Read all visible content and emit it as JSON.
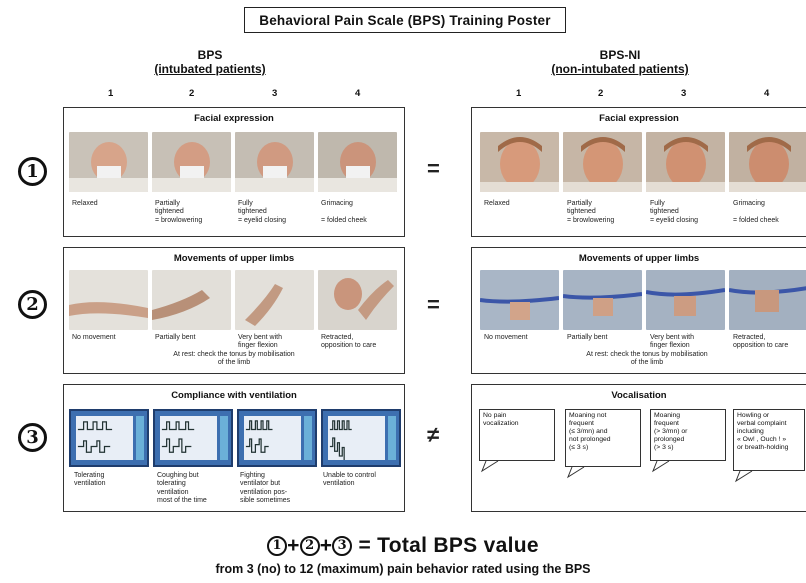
{
  "title": "Behavioral Pain Scale (BPS) Training Poster",
  "left_column": {
    "heading": "BPS",
    "subheading": "(intubated patients)"
  },
  "right_column": {
    "heading": "BPS-NI",
    "subheading": "(non-intubated patients)"
  },
  "score_labels": [
    "1",
    "2",
    "3",
    "4"
  ],
  "item_numbers": [
    "1",
    "2",
    "3"
  ],
  "relations": [
    "=",
    "=",
    "≠"
  ],
  "facial": {
    "title": "Facial expression",
    "captions": [
      "Relaxed",
      "Partially\ntightened\n= browlowering",
      "Fully\ntightened\n= eyelid closing",
      "Grimacing\n\n= folded cheek"
    ]
  },
  "limbs": {
    "title": "Movements of upper limbs",
    "captions": [
      "No movement",
      "Partially bent",
      "Very bent with\nfinger flexion",
      "Retracted,\nopposition to care"
    ],
    "note": "At rest: check the tonus by mobilisation\nof the limb"
  },
  "ventilation": {
    "title": "Compliance with ventilation",
    "captions": [
      "Tolerating\nventilation",
      "Coughing but\ntolerating\nventilation\nmost of the time",
      "Fighting\nventilator but\nventilation pos-\nsible sometimes",
      "Unable to control\nventilation"
    ]
  },
  "vocalisation": {
    "title": "Vocalisation",
    "captions": [
      "No pain\nvocalization",
      "Moaning not\nfrequent\n(≤ 3/mn) and\nnot prolonged\n(≤ 3 s)",
      "Moaning\nfrequent\n(> 3/mn) or\nprolonged\n(> 3 s)",
      "Howling or\nverbal complaint\nincluding\n« Ow! , Ouch ! »\nor breath-holding"
    ]
  },
  "formula": {
    "circles": [
      "1",
      "2",
      "3"
    ],
    "text": "= Total BPS value"
  },
  "footer": "from 3 (no) to 12 (maximum) pain behavior rated using the BPS",
  "colors": {
    "accent_screen": "#3d6fb0",
    "border": "#333333"
  }
}
